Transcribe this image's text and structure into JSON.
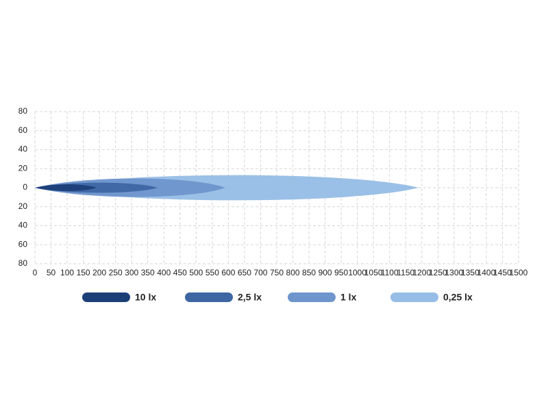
{
  "chart_data": {
    "type": "beam",
    "xlim": [
      0,
      1500
    ],
    "xticks": [
      0,
      50,
      100,
      150,
      200,
      250,
      300,
      350,
      400,
      450,
      500,
      550,
      600,
      650,
      700,
      750,
      800,
      850,
      900,
      950,
      1000,
      1050,
      1100,
      1150,
      1200,
      1250,
      1300,
      1350,
      1400,
      1450,
      1500
    ],
    "ylim": [
      -80,
      80
    ],
    "yticks": [
      80,
      60,
      40,
      20,
      0,
      {
        "value": -20,
        "label": "20"
      },
      {
        "value": -40,
        "label": "40"
      },
      {
        "value": -60,
        "label": "60"
      },
      {
        "value": -80,
        "label": "80"
      }
    ],
    "grid": true,
    "legend": "bottom",
    "series": [
      {
        "name": "10 lx",
        "color": "#1d3f78",
        "reach": 190,
        "half_width": 4
      },
      {
        "name": "2,5 lx",
        "color": "#3d66a3",
        "reach": 380,
        "half_width": 6
      },
      {
        "name": "1 lx",
        "color": "#6e95cc",
        "reach": 590,
        "half_width": 11
      },
      {
        "name": "0,25 lx",
        "color": "#96bde6",
        "reach": 1190,
        "half_width": 15
      }
    ]
  }
}
